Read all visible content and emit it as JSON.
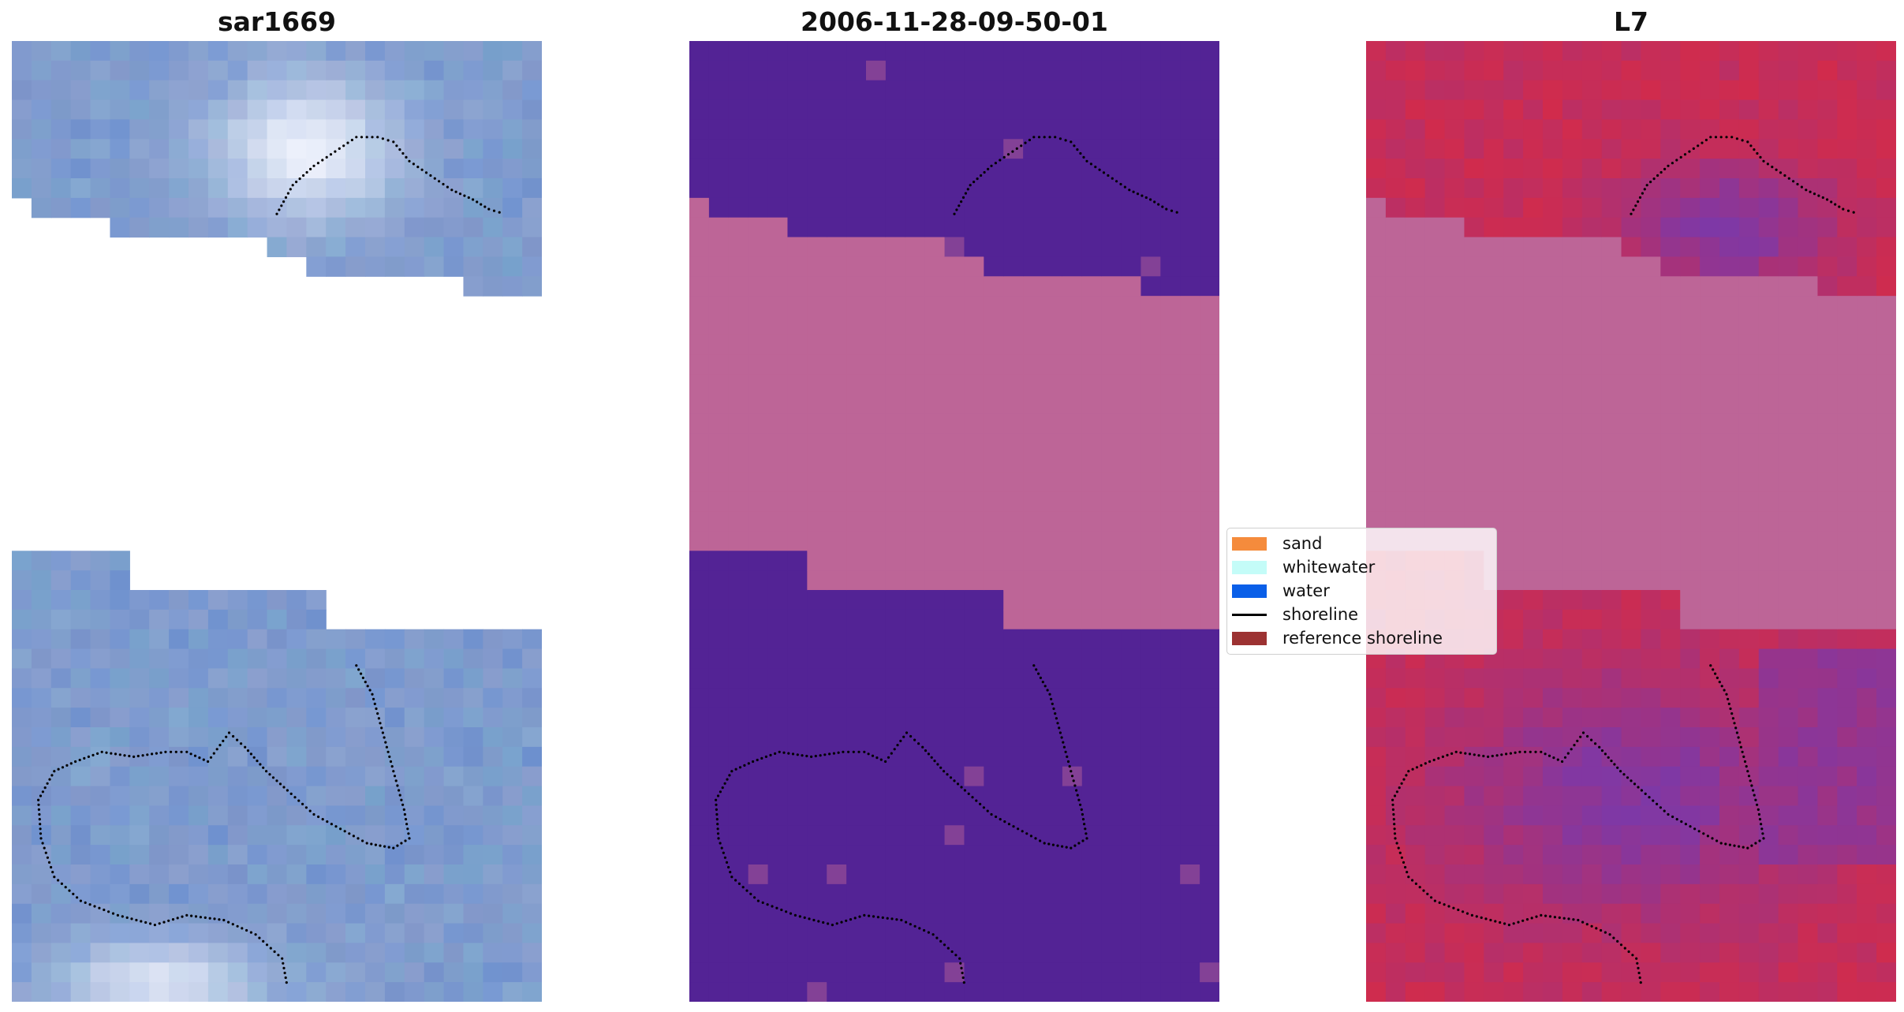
{
  "panels": [
    {
      "id": "rgb",
      "title": "sar1669"
    },
    {
      "id": "classified",
      "title": "2006-11-28-09-50-01"
    },
    {
      "id": "index",
      "title": "L7"
    }
  ],
  "legend": {
    "items": [
      {
        "label": "sand",
        "color": "#f58b3c",
        "kind": "patch"
      },
      {
        "label": "whitewater",
        "color": "#c4fcf8",
        "kind": "patch"
      },
      {
        "label": "water",
        "color": "#0a5fe8",
        "kind": "patch"
      },
      {
        "label": "shoreline",
        "color": "#000000",
        "kind": "line"
      },
      {
        "label": "reference shoreline",
        "color": "#9c3232",
        "kind": "patch"
      }
    ]
  },
  "colors": {
    "nodata": "#bd6597",
    "classified_water_dark": "#532395",
    "rgb_base": "#7f95c8",
    "rgb_bright": "#ecf0fb",
    "index_red": "#c62d58",
    "index_purple": "#7e38a6",
    "shoreline_dots": "#000000"
  }
}
